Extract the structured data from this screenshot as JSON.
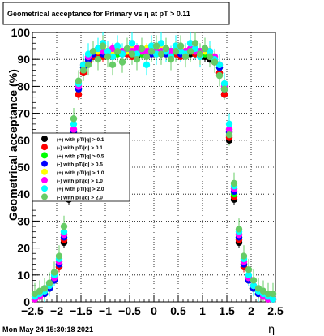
{
  "title": "Geometrical acceptance for Primary vs  η at pT > 0.11",
  "footer": "Mon May 24 15:30:18 2021",
  "chart_data": {
    "type": "scatter",
    "title": "Geometrical acceptance for Primary vs  η at pT > 0.11",
    "xlabel": "η",
    "ylabel": "Geometrical acceptance (%)",
    "xlim": [
      -2.5,
      2.5
    ],
    "ylim": [
      0,
      100
    ],
    "grid": true,
    "legend_position": "left-middle",
    "x_ticks": [
      -2.5,
      -2,
      -1.5,
      -1,
      -0.5,
      0,
      0.5,
      1,
      1.5,
      2,
      2.5
    ],
    "x_tick_labels": [
      "−2.5",
      "−2",
      "−1.5",
      "−1",
      "−0.5",
      "0",
      "0.5",
      "1",
      "1.5",
      "2",
      "2.5"
    ],
    "y_ticks": [
      0,
      10,
      20,
      30,
      40,
      50,
      60,
      70,
      80,
      90,
      100
    ],
    "y_tick_labels": [
      "0",
      "10",
      "20",
      "30",
      "40",
      "50",
      "60",
      "70",
      "80",
      "90",
      "100"
    ],
    "x": [
      -2.45,
      -2.35,
      -2.25,
      -2.15,
      -2.05,
      -1.95,
      -1.85,
      -1.75,
      -1.65,
      -1.55,
      -1.45,
      -1.35,
      -1.25,
      -1.15,
      -1.05,
      -0.95,
      -0.85,
      -0.75,
      -0.65,
      -0.55,
      -0.45,
      -0.35,
      -0.25,
      -0.15,
      -0.05,
      0.05,
      0.15,
      0.25,
      0.35,
      0.45,
      0.55,
      0.65,
      0.75,
      0.85,
      0.95,
      1.05,
      1.15,
      1.25,
      1.35,
      1.45,
      1.55,
      1.65,
      1.75,
      1.85,
      1.95,
      2.05,
      2.15,
      2.25,
      2.35,
      2.45
    ],
    "series": [
      {
        "name": "(+) with pT/|q| > 0.1",
        "color": "#000000",
        "marker": "circle",
        "values": [
          1,
          2,
          3,
          5,
          8,
          13,
          22,
          38,
          60,
          77,
          85,
          89,
          91,
          92,
          92,
          92,
          91,
          92,
          93,
          92,
          92,
          91,
          92,
          92,
          92,
          93,
          92,
          93,
          92,
          92,
          93,
          92,
          92,
          92,
          92,
          91,
          90,
          89,
          85,
          77,
          60,
          38,
          22,
          13,
          8,
          5,
          3,
          2,
          1,
          1
        ]
      },
      {
        "name": "(-) with pT/|q| > 0.1",
        "color": "#ff0000",
        "marker": "circle",
        "values": [
          1,
          2,
          3,
          5,
          8,
          13,
          23,
          39,
          61,
          77,
          85,
          89,
          91,
          92,
          91,
          92,
          92,
          93,
          92,
          92,
          91,
          92,
          93,
          92,
          92,
          92,
          92,
          92,
          93,
          92,
          91,
          92,
          93,
          92,
          92,
          92,
          91,
          89,
          85,
          77,
          61,
          39,
          23,
          13,
          8,
          5,
          3,
          2,
          1,
          1
        ]
      },
      {
        "name": "(+) with pT/|q| > 0.5",
        "color": "#00ff00",
        "marker": "circle",
        "values": [
          1,
          2,
          3,
          5,
          8,
          14,
          24,
          40,
          63,
          79,
          87,
          90,
          92,
          93,
          93,
          92,
          93,
          92,
          93,
          93,
          92,
          93,
          92,
          93,
          93,
          92,
          93,
          93,
          92,
          93,
          93,
          92,
          93,
          93,
          93,
          92,
          92,
          90,
          87,
          79,
          63,
          40,
          24,
          14,
          8,
          5,
          3,
          2,
          1,
          1
        ]
      },
      {
        "name": "(-) with pT/|q| > 0.5",
        "color": "#0000ff",
        "marker": "circle",
        "values": [
          1,
          2,
          3,
          5,
          8,
          14,
          24,
          41,
          63,
          79,
          87,
          90,
          92,
          93,
          92,
          93,
          93,
          93,
          92,
          93,
          93,
          92,
          93,
          93,
          92,
          93,
          93,
          92,
          93,
          93,
          92,
          93,
          93,
          93,
          92,
          93,
          92,
          90,
          87,
          79,
          63,
          41,
          24,
          14,
          8,
          5,
          3,
          2,
          1,
          1
        ]
      },
      {
        "name": "(+) with pT/|q| > 1.0",
        "color": "#ffff00",
        "marker": "circle",
        "values": [
          1,
          2,
          4,
          6,
          9,
          15,
          25,
          42,
          64,
          80,
          88,
          91,
          93,
          93,
          94,
          93,
          93,
          94,
          93,
          93,
          94,
          93,
          93,
          94,
          93,
          93,
          94,
          93,
          93,
          93,
          94,
          93,
          93,
          94,
          93,
          93,
          92,
          91,
          88,
          80,
          64,
          42,
          25,
          15,
          9,
          6,
          4,
          2,
          1,
          1
        ]
      },
      {
        "name": "(-) with pT/|q| > 1.0",
        "color": "#ff00ff",
        "marker": "circle",
        "values": [
          1,
          2,
          4,
          6,
          9,
          15,
          25,
          42,
          64,
          80,
          88,
          91,
          93,
          94,
          93,
          93,
          94,
          93,
          93,
          94,
          93,
          94,
          93,
          93,
          94,
          93,
          93,
          94,
          93,
          94,
          93,
          93,
          94,
          93,
          93,
          94,
          93,
          91,
          88,
          80,
          64,
          42,
          25,
          15,
          9,
          6,
          4,
          2,
          1,
          1
        ]
      },
      {
        "name": "(+) with pT/|q| > 2.0",
        "color": "#00ffff",
        "marker": "circle",
        "values": [
          2,
          3,
          4,
          6,
          10,
          16,
          26,
          43,
          66,
          81,
          88,
          92,
          93,
          94,
          96,
          93,
          91,
          95,
          92,
          94,
          96,
          92,
          94,
          88,
          95,
          92,
          96,
          93,
          91,
          95,
          93,
          92,
          96,
          94,
          91,
          94,
          93,
          90,
          88,
          81,
          66,
          43,
          26,
          16,
          10,
          6,
          4,
          3,
          2,
          1
        ]
      },
      {
        "name": "(-) with pT/|q| > 2.0",
        "color": "#66cc66",
        "marker": "circle",
        "values": [
          3,
          4,
          5,
          7,
          11,
          17,
          28,
          46,
          68,
          82,
          86,
          88,
          93,
          90,
          95,
          91,
          88,
          93,
          89,
          94,
          92,
          90,
          94,
          91,
          93,
          95,
          92,
          94,
          90,
          93,
          95,
          91,
          93,
          96,
          92,
          94,
          91,
          89,
          84,
          79,
          62,
          44,
          27,
          17,
          12,
          8,
          5,
          4,
          3,
          3
        ]
      }
    ]
  }
}
